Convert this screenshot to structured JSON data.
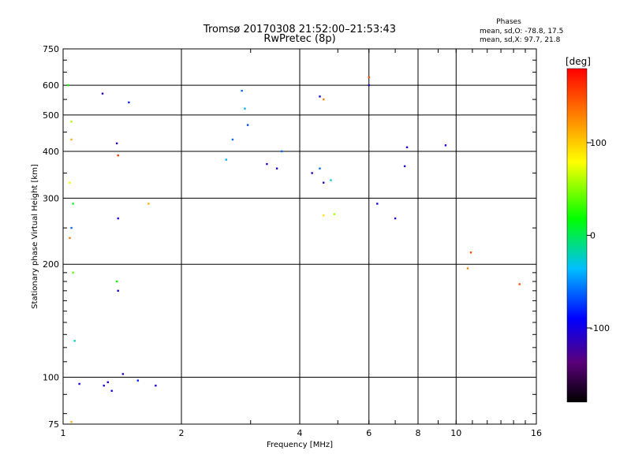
{
  "header": {
    "title_line1": "Tromsø 20170308 21:52:00–21:53:43",
    "title_line2": "RwPretec (8p)"
  },
  "stats": {
    "heading": "Phases",
    "line_o": "mean, sd,O: -78.8, 17.5",
    "line_x": "mean, sd,X:  97.7, 21.8"
  },
  "chart_data": {
    "type": "scatter",
    "title": "Tromsø 20170308 21:52:00–21:53:43",
    "subtitle": "RwPretec (8p)",
    "xlabel": "Frequency [MHz]",
    "ylabel": "Stationary phase Virtual Height [km]",
    "xscale": "log",
    "yscale": "log",
    "xlim": [
      1,
      16
    ],
    "ylim": [
      75,
      750
    ],
    "x_ticks": [
      1,
      2,
      4,
      6,
      8,
      10,
      16
    ],
    "y_ticks": [
      75,
      100,
      200,
      300,
      400,
      500,
      600,
      750
    ],
    "grid": true,
    "colorbar": {
      "label": "[deg]",
      "range": [
        -180,
        180
      ],
      "ticks": [
        100,
        0,
        -100
      ]
    },
    "series": [
      {
        "values": [
          {
            "x": 1.03,
            "y": 600,
            "phase": 20
          },
          {
            "x": 1.05,
            "y": 480,
            "phase": 60
          },
          {
            "x": 1.05,
            "y": 430,
            "phase": 110
          },
          {
            "x": 1.04,
            "y": 330,
            "phase": 80
          },
          {
            "x": 1.06,
            "y": 290,
            "phase": 10
          },
          {
            "x": 1.05,
            "y": 250,
            "phase": -60
          },
          {
            "x": 1.04,
            "y": 235,
            "phase": 130
          },
          {
            "x": 1.06,
            "y": 190,
            "phase": 40
          },
          {
            "x": 1.07,
            "y": 125,
            "phase": -20
          },
          {
            "x": 1.05,
            "y": 76,
            "phase": 110
          },
          {
            "x": 1.1,
            "y": 96,
            "phase": -100
          },
          {
            "x": 1.27,
            "y": 95,
            "phase": -100
          },
          {
            "x": 1.3,
            "y": 97,
            "phase": -110
          },
          {
            "x": 1.33,
            "y": 92,
            "phase": -95
          },
          {
            "x": 1.26,
            "y": 570,
            "phase": -110
          },
          {
            "x": 1.47,
            "y": 540,
            "phase": -80
          },
          {
            "x": 1.37,
            "y": 420,
            "phase": -110
          },
          {
            "x": 1.38,
            "y": 390,
            "phase": 160
          },
          {
            "x": 1.38,
            "y": 265,
            "phase": -100
          },
          {
            "x": 1.37,
            "y": 180,
            "phase": 20
          },
          {
            "x": 1.38,
            "y": 170,
            "phase": -100
          },
          {
            "x": 1.65,
            "y": 290,
            "phase": 110
          },
          {
            "x": 1.42,
            "y": 102,
            "phase": -100
          },
          {
            "x": 1.55,
            "y": 98,
            "phase": -80
          },
          {
            "x": 1.72,
            "y": 95,
            "phase": -100
          },
          {
            "x": 2.85,
            "y": 580,
            "phase": -60
          },
          {
            "x": 2.9,
            "y": 520,
            "phase": -40
          },
          {
            "x": 2.7,
            "y": 430,
            "phase": -60
          },
          {
            "x": 2.6,
            "y": 380,
            "phase": -40
          },
          {
            "x": 2.95,
            "y": 470,
            "phase": -70
          },
          {
            "x": 3.3,
            "y": 370,
            "phase": -110
          },
          {
            "x": 3.5,
            "y": 360,
            "phase": -110
          },
          {
            "x": 3.6,
            "y": 400,
            "phase": -60
          },
          {
            "x": 4.5,
            "y": 560,
            "phase": -110
          },
          {
            "x": 4.6,
            "y": 550,
            "phase": 130
          },
          {
            "x": 4.3,
            "y": 350,
            "phase": -110
          },
          {
            "x": 4.5,
            "y": 360,
            "phase": -60
          },
          {
            "x": 4.6,
            "y": 330,
            "phase": -110
          },
          {
            "x": 4.8,
            "y": 335,
            "phase": -30
          },
          {
            "x": 4.6,
            "y": 270,
            "phase": 90
          },
          {
            "x": 4.9,
            "y": 272,
            "phase": 60
          },
          {
            "x": 6.0,
            "y": 600,
            "phase": -110
          },
          {
            "x": 6.0,
            "y": 630,
            "phase": 150
          },
          {
            "x": 7.5,
            "y": 410,
            "phase": -100
          },
          {
            "x": 7.4,
            "y": 365,
            "phase": -110
          },
          {
            "x": 9.4,
            "y": 415,
            "phase": -110
          },
          {
            "x": 10.9,
            "y": 215,
            "phase": 150
          },
          {
            "x": 10.7,
            "y": 195,
            "phase": 130
          },
          {
            "x": 14.5,
            "y": 177,
            "phase": 150
          },
          {
            "x": 7.0,
            "y": 265,
            "phase": -110
          },
          {
            "x": 6.3,
            "y": 290,
            "phase": -100
          }
        ]
      }
    ]
  }
}
